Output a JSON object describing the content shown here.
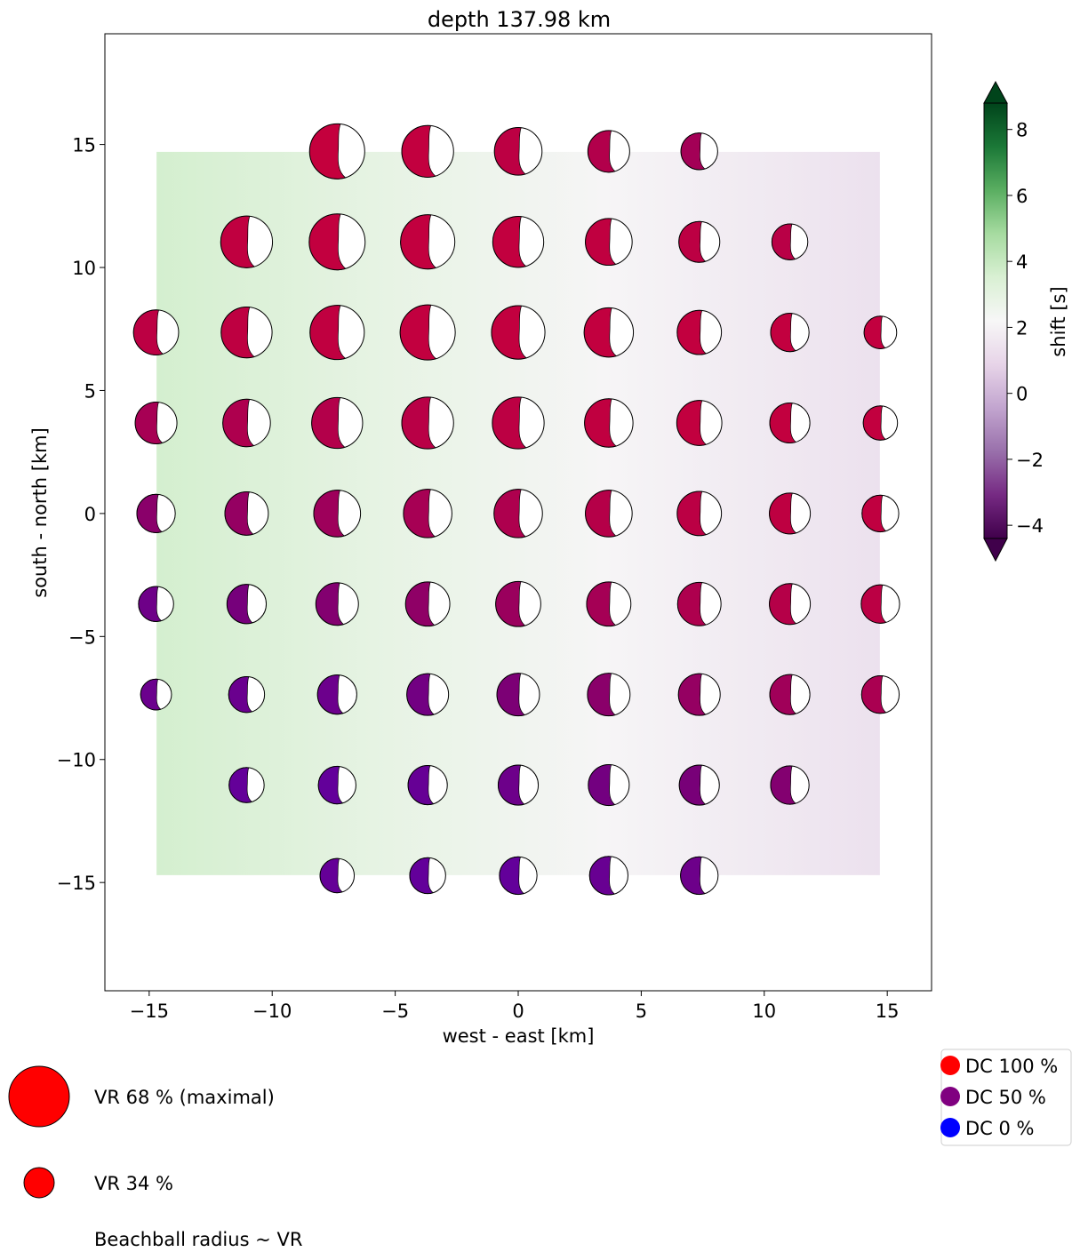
{
  "chart_data": {
    "type": "scatter",
    "title": "depth 137.98 km",
    "xlabel": "west - east [km]",
    "ylabel": "south - north [km]",
    "xlim": [
      -16.8,
      16.8
    ],
    "ylim": [
      -19.4,
      19.5
    ],
    "xticks": [
      -15,
      -10,
      -5,
      0,
      5,
      10,
      15
    ],
    "yticks": [
      -15,
      -10,
      -5,
      0,
      5,
      10,
      15
    ],
    "grid_step_km": 3.68,
    "background": {
      "field": "shift [s]",
      "extent_km": [
        -14.7,
        14.7,
        -14.7,
        14.7
      ],
      "left_value": 3.6,
      "right_value": 1.2
    },
    "colorbar": {
      "label": "shift [s]",
      "min": -4.4,
      "max": 8.8,
      "ticks": [
        -4,
        -2,
        0,
        2,
        4,
        6,
        8
      ],
      "tick_labels": [
        "−4",
        "−2",
        "0",
        "2",
        "4",
        "6",
        "8"
      ],
      "extend": "both",
      "colors": [
        "#40004b",
        "#762a83",
        "#9970ab",
        "#c2a5cf",
        "#e7d4e8",
        "#f7f7f7",
        "#d9f0d3",
        "#a6dba0",
        "#5aae61",
        "#1b7837",
        "#00441b"
      ]
    },
    "beachballs": [
      {
        "x": -7.36,
        "y": 14.72,
        "vr": 66,
        "dc": 92
      },
      {
        "x": -3.68,
        "y": 14.72,
        "vr": 62,
        "dc": 91
      },
      {
        "x": 0,
        "y": 14.72,
        "vr": 57,
        "dc": 88
      },
      {
        "x": 3.68,
        "y": 14.72,
        "vr": 50,
        "dc": 82
      },
      {
        "x": 7.36,
        "y": 14.72,
        "vr": 44,
        "dc": 74
      },
      {
        "x": -11.04,
        "y": 11.04,
        "vr": 62,
        "dc": 90
      },
      {
        "x": -7.36,
        "y": 11.04,
        "vr": 67,
        "dc": 91
      },
      {
        "x": -3.68,
        "y": 11.04,
        "vr": 65,
        "dc": 91
      },
      {
        "x": 0,
        "y": 11.04,
        "vr": 61,
        "dc": 91
      },
      {
        "x": 3.68,
        "y": 11.04,
        "vr": 56,
        "dc": 90
      },
      {
        "x": 7.36,
        "y": 11.04,
        "vr": 49,
        "dc": 88
      },
      {
        "x": 11.04,
        "y": 11.04,
        "vr": 43,
        "dc": 86
      },
      {
        "x": -14.72,
        "y": 7.36,
        "vr": 54,
        "dc": 88
      },
      {
        "x": -11.04,
        "y": 7.36,
        "vr": 61,
        "dc": 89
      },
      {
        "x": -7.36,
        "y": 7.36,
        "vr": 65,
        "dc": 90
      },
      {
        "x": -3.68,
        "y": 7.36,
        "vr": 66,
        "dc": 91
      },
      {
        "x": 0,
        "y": 7.36,
        "vr": 64,
        "dc": 91
      },
      {
        "x": 3.68,
        "y": 7.36,
        "vr": 59,
        "dc": 91
      },
      {
        "x": 7.36,
        "y": 7.36,
        "vr": 53,
        "dc": 91
      },
      {
        "x": 11.04,
        "y": 7.36,
        "vr": 46,
        "dc": 91
      },
      {
        "x": 14.72,
        "y": 7.36,
        "vr": 39,
        "dc": 91
      },
      {
        "x": -14.72,
        "y": 3.68,
        "vr": 50,
        "dc": 76
      },
      {
        "x": -11.04,
        "y": 3.68,
        "vr": 57,
        "dc": 80
      },
      {
        "x": -7.36,
        "y": 3.68,
        "vr": 61,
        "dc": 83
      },
      {
        "x": -3.68,
        "y": 3.68,
        "vr": 62,
        "dc": 86
      },
      {
        "x": 0,
        "y": 3.68,
        "vr": 62,
        "dc": 88
      },
      {
        "x": 3.68,
        "y": 3.68,
        "vr": 58,
        "dc": 90
      },
      {
        "x": 7.36,
        "y": 3.68,
        "vr": 54,
        "dc": 91
      },
      {
        "x": 11.04,
        "y": 3.68,
        "vr": 48,
        "dc": 91
      },
      {
        "x": 14.72,
        "y": 3.68,
        "vr": 41,
        "dc": 91
      },
      {
        "x": -14.72,
        "y": 0,
        "vr": 46,
        "dc": 60
      },
      {
        "x": -11.04,
        "y": 0,
        "vr": 52,
        "dc": 66
      },
      {
        "x": -7.36,
        "y": 0,
        "vr": 56,
        "dc": 71
      },
      {
        "x": -3.68,
        "y": 0,
        "vr": 58,
        "dc": 76
      },
      {
        "x": 0,
        "y": 0,
        "vr": 58,
        "dc": 80
      },
      {
        "x": 3.68,
        "y": 0,
        "vr": 56,
        "dc": 84
      },
      {
        "x": 7.36,
        "y": 0,
        "vr": 53,
        "dc": 87
      },
      {
        "x": 11.04,
        "y": 0,
        "vr": 49,
        "dc": 89
      },
      {
        "x": 14.72,
        "y": 0,
        "vr": 44,
        "dc": 90
      },
      {
        "x": -14.72,
        "y": -3.68,
        "vr": 42,
        "dc": 38
      },
      {
        "x": -11.04,
        "y": -3.68,
        "vr": 47,
        "dc": 48
      },
      {
        "x": -7.36,
        "y": -3.68,
        "vr": 51,
        "dc": 56
      },
      {
        "x": -3.68,
        "y": -3.68,
        "vr": 53,
        "dc": 63
      },
      {
        "x": 0,
        "y": -3.68,
        "vr": 54,
        "dc": 69
      },
      {
        "x": 3.68,
        "y": -3.68,
        "vr": 53,
        "dc": 75
      },
      {
        "x": 7.36,
        "y": -3.68,
        "vr": 52,
        "dc": 80
      },
      {
        "x": 11.04,
        "y": -3.68,
        "vr": 49,
        "dc": 84
      },
      {
        "x": 14.72,
        "y": -3.68,
        "vr": 46,
        "dc": 87
      },
      {
        "x": -14.72,
        "y": -7.36,
        "vr": 37,
        "dc": 34
      },
      {
        "x": -11.04,
        "y": -7.36,
        "vr": 43,
        "dc": 33
      },
      {
        "x": -7.36,
        "y": -7.36,
        "vr": 47,
        "dc": 35
      },
      {
        "x": -3.68,
        "y": -7.36,
        "vr": 50,
        "dc": 42
      },
      {
        "x": 0,
        "y": -7.36,
        "vr": 51,
        "dc": 52
      },
      {
        "x": 3.68,
        "y": -7.36,
        "vr": 51,
        "dc": 60
      },
      {
        "x": 7.36,
        "y": -7.36,
        "vr": 50,
        "dc": 66
      },
      {
        "x": 11.04,
        "y": -7.36,
        "vr": 48,
        "dc": 72
      },
      {
        "x": 14.72,
        "y": -7.36,
        "vr": 45,
        "dc": 78
      },
      {
        "x": -11.04,
        "y": -11.04,
        "vr": 42,
        "dc": 25
      },
      {
        "x": -7.36,
        "y": -11.04,
        "vr": 45,
        "dc": 24
      },
      {
        "x": -3.68,
        "y": -11.04,
        "vr": 47,
        "dc": 28
      },
      {
        "x": 0,
        "y": -11.04,
        "vr": 48,
        "dc": 36
      },
      {
        "x": 3.68,
        "y": -11.04,
        "vr": 49,
        "dc": 44
      },
      {
        "x": 7.36,
        "y": -11.04,
        "vr": 48,
        "dc": 50
      },
      {
        "x": 11.04,
        "y": -11.04,
        "vr": 46,
        "dc": 56
      },
      {
        "x": -7.36,
        "y": -14.72,
        "vr": 41,
        "dc": 26
      },
      {
        "x": -3.68,
        "y": -14.72,
        "vr": 43,
        "dc": 24
      },
      {
        "x": 0,
        "y": -14.72,
        "vr": 45,
        "dc": 24
      },
      {
        "x": 3.68,
        "y": -14.72,
        "vr": 46,
        "dc": 30
      },
      {
        "x": 7.36,
        "y": -14.72,
        "vr": 45,
        "dc": 36
      }
    ],
    "vr_legend": [
      {
        "label": "VR 68 % (maximal)",
        "vr": 68
      },
      {
        "label": "VR 34 %",
        "vr": 34
      }
    ],
    "vr_note": "Beachball radius ~ VR",
    "dc_legend": [
      {
        "label": "DC 100 %",
        "color": "#ff0000"
      },
      {
        "label": "DC 50 %",
        "color": "#800080"
      },
      {
        "label": "DC 0 %",
        "color": "#0000ff"
      }
    ]
  }
}
